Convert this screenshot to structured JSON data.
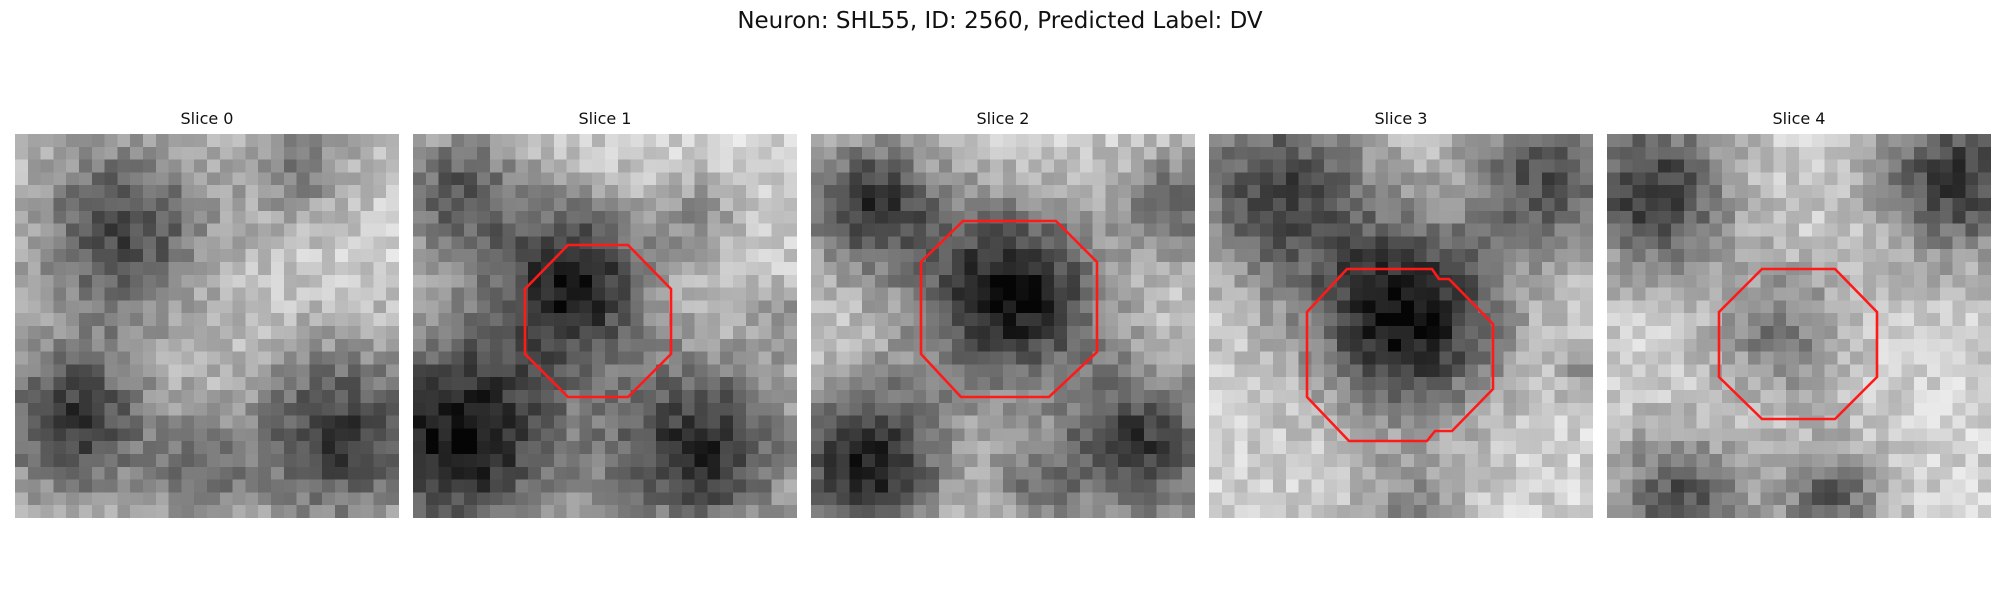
{
  "figure": {
    "title": "Neuron: SHL55, ID: 2560, Predicted Label: DV",
    "neuron": "SHL55",
    "id": 2560,
    "predicted_label": "DV"
  },
  "colors": {
    "roi_outline": "#ff1a1a",
    "background": "#ffffff"
  },
  "panels": [
    {
      "title": "Slice 0",
      "has_roi": false
    },
    {
      "title": "Slice 1",
      "has_roi": true
    },
    {
      "title": "Slice 2",
      "has_roi": true
    },
    {
      "title": "Slice 3",
      "has_roi": true
    },
    {
      "title": "Slice 4",
      "has_roi": true
    }
  ]
}
